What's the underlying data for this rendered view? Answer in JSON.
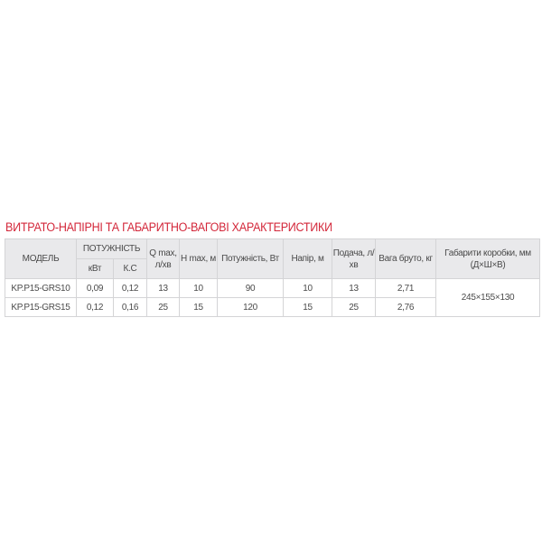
{
  "title": "ВИТРАТО-НАПІРНІ ТА ГАБАРИТНО-ВАГОВІ ХАРАКТЕРИСТИКИ",
  "headers": {
    "model": "МОДЕЛЬ",
    "power_group": "ПОТУЖНІСТЬ",
    "kw": "кВт",
    "hp": "К.С",
    "qmax": "Q max, л/хв",
    "hmax": "H max, м",
    "power_w": "Потужність, Вт",
    "head": "Напір, м",
    "flow": "Подача, л/хв",
    "weight": "Вага бруто, кг",
    "box": "Габарити коробки, мм (Д×Ш×В)"
  },
  "rows": [
    {
      "model": "KP.P15-GRS10",
      "kw": "0,09",
      "hp": "0,12",
      "qmax": "13",
      "hmax": "10",
      "power_w": "90",
      "head": "10",
      "flow": "13",
      "weight": "2,71"
    },
    {
      "model": "KP.P15-GRS15",
      "kw": "0,12",
      "hp": "0,16",
      "qmax": "25",
      "hmax": "15",
      "power_w": "120",
      "head": "15",
      "flow": "25",
      "weight": "2,76"
    }
  ],
  "box_size": "245×155×130",
  "colors": {
    "title": "#d3273a",
    "header_bg": "#e9e9eb"
  }
}
